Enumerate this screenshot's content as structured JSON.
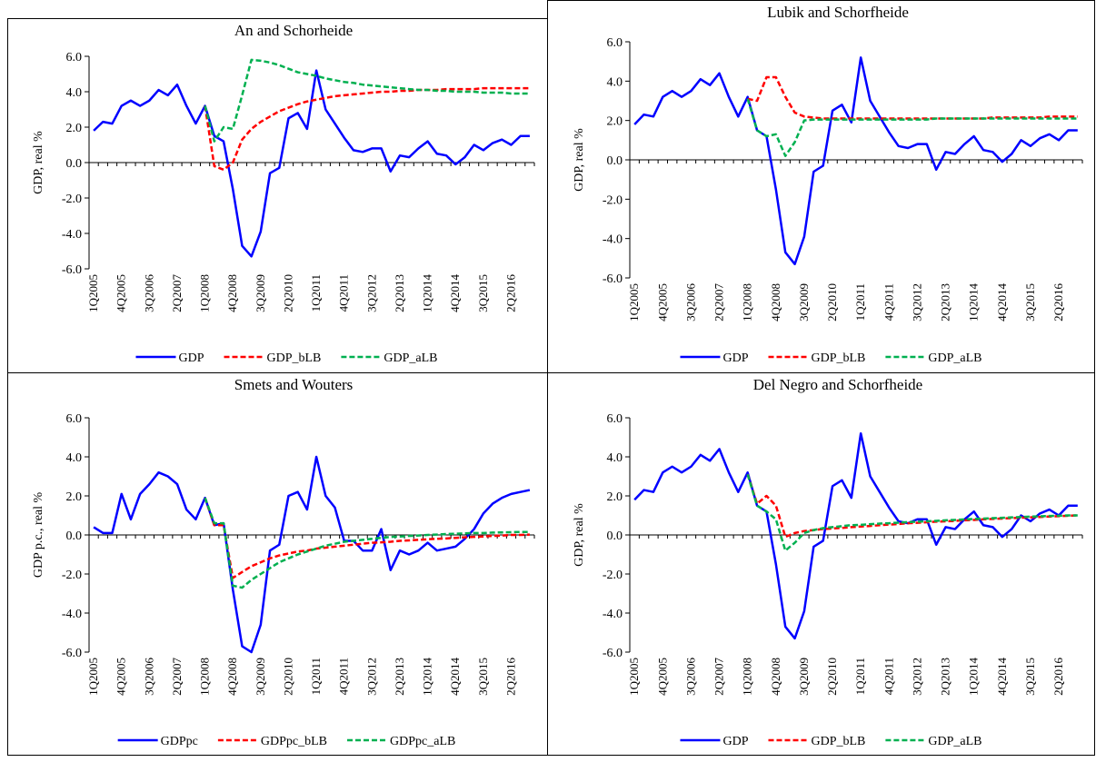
{
  "chart_data": [
    {
      "type": "line",
      "title": "An and Schorheide",
      "y_label": "GDP, real %",
      "categories": [
        "1Q2005",
        null,
        null,
        "4Q2005",
        null,
        null,
        "3Q2006",
        null,
        null,
        "2Q2007",
        null,
        null,
        "1Q2008",
        null,
        null,
        "4Q2008",
        null,
        null,
        "3Q2009",
        null,
        null,
        "2Q2010",
        null,
        null,
        "1Q2011",
        null,
        null,
        "4Q2011",
        null,
        null,
        "3Q2012",
        null,
        null,
        "2Q2013",
        null,
        null,
        "1Q2014",
        null,
        null,
        "4Q2014",
        null,
        null,
        "3Q2015",
        null,
        null,
        "2Q2016",
        null,
        null
      ],
      "series": [
        {
          "name": "GDP",
          "color": "#0000ff",
          "dashed": false,
          "values": [
            1.8,
            2.3,
            2.2,
            3.2,
            3.5,
            3.2,
            3.5,
            4.1,
            3.8,
            4.4,
            3.2,
            2.2,
            3.2,
            1.5,
            1.2,
            -1.5,
            -4.7,
            -5.3,
            -3.9,
            -0.6,
            -0.3,
            2.5,
            2.8,
            1.9,
            5.2,
            3.0,
            2.2,
            1.4,
            0.7,
            0.6,
            0.8,
            0.8,
            -0.5,
            0.4,
            0.3,
            0.8,
            1.2,
            0.5,
            0.4,
            -0.1,
            0.3,
            1.0,
            0.7,
            1.1,
            1.3,
            1.0,
            1.5,
            1.5
          ]
        },
        {
          "name": "GDP_bLB",
          "color": "#ff0000",
          "dashed": true,
          "values": [
            null,
            null,
            null,
            null,
            null,
            null,
            null,
            null,
            null,
            null,
            null,
            null,
            3.2,
            -0.2,
            -0.4,
            0.0,
            1.3,
            1.9,
            2.3,
            2.6,
            2.9,
            3.1,
            3.3,
            3.45,
            3.55,
            3.65,
            3.75,
            3.8,
            3.85,
            3.9,
            3.95,
            4.0,
            4.0,
            4.05,
            4.05,
            4.1,
            4.1,
            4.1,
            4.15,
            4.15,
            4.15,
            4.15,
            4.2,
            4.2,
            4.2,
            4.2,
            4.2,
            4.2
          ]
        },
        {
          "name": "GDP_aLB",
          "color": "#00b050",
          "dashed": true,
          "values": [
            null,
            null,
            null,
            null,
            null,
            null,
            null,
            null,
            null,
            null,
            null,
            null,
            3.2,
            1.2,
            2.0,
            1.9,
            3.8,
            5.8,
            5.75,
            5.65,
            5.5,
            5.3,
            5.1,
            5.0,
            4.9,
            4.75,
            4.65,
            4.55,
            4.5,
            4.4,
            4.35,
            4.3,
            4.25,
            4.2,
            4.15,
            4.1,
            4.1,
            4.05,
            4.05,
            4.0,
            4.0,
            4.0,
            3.95,
            3.95,
            3.95,
            3.9,
            3.9,
            3.9
          ]
        }
      ],
      "ylim": [
        -6,
        6
      ],
      "yticks": [
        {
          "value": -6,
          "label": "-6.0"
        },
        {
          "value": -4,
          "label": "-4.0"
        },
        {
          "value": -2,
          "label": "-2.0"
        },
        {
          "value": 0,
          "label": "0.0"
        },
        {
          "value": 2,
          "label": "2.0"
        },
        {
          "value": 4,
          "label": "4.0"
        },
        {
          "value": 6,
          "label": "6.0"
        }
      ],
      "legend": "bottom",
      "title_color": "#000000"
    },
    {
      "type": "line",
      "title": "Lubik and Schorfheide",
      "y_label": "GDP, real %",
      "categories": [
        "1Q2005",
        null,
        null,
        "4Q2005",
        null,
        null,
        "3Q2006",
        null,
        null,
        "2Q2007",
        null,
        null,
        "1Q2008",
        null,
        null,
        "4Q2008",
        null,
        null,
        "3Q2009",
        null,
        null,
        "2Q2010",
        null,
        null,
        "1Q2011",
        null,
        null,
        "4Q2011",
        null,
        null,
        "3Q2012",
        null,
        null,
        "2Q2013",
        null,
        null,
        "1Q2014",
        null,
        null,
        "4Q2014",
        null,
        null,
        "3Q2015",
        null,
        null,
        "2Q2016",
        null,
        null
      ],
      "series": [
        {
          "name": "GDP",
          "color": "#0000ff",
          "dashed": false,
          "values": [
            1.8,
            2.3,
            2.2,
            3.2,
            3.5,
            3.2,
            3.5,
            4.1,
            3.8,
            4.4,
            3.2,
            2.2,
            3.2,
            1.5,
            1.2,
            -1.5,
            -4.7,
            -5.3,
            -3.9,
            -0.6,
            -0.3,
            2.5,
            2.8,
            1.9,
            5.2,
            3.0,
            2.2,
            1.4,
            0.7,
            0.6,
            0.8,
            0.8,
            -0.5,
            0.4,
            0.3,
            0.8,
            1.2,
            0.5,
            0.4,
            -0.1,
            0.3,
            1.0,
            0.7,
            1.1,
            1.3,
            1.0,
            1.5,
            1.5
          ]
        },
        {
          "name": "GDP_bLB",
          "color": "#ff0000",
          "dashed": true,
          "values": [
            null,
            null,
            null,
            null,
            null,
            null,
            null,
            null,
            null,
            null,
            null,
            null,
            3.1,
            3.0,
            4.2,
            4.2,
            3.2,
            2.4,
            2.2,
            2.15,
            2.1,
            2.1,
            2.1,
            2.1,
            2.1,
            2.1,
            2.1,
            2.1,
            2.1,
            2.1,
            2.1,
            2.1,
            2.1,
            2.1,
            2.1,
            2.1,
            2.1,
            2.1,
            2.15,
            2.15,
            2.15,
            2.15,
            2.15,
            2.15,
            2.2,
            2.2,
            2.2,
            2.2
          ]
        },
        {
          "name": "GDP_aLB",
          "color": "#00b050",
          "dashed": true,
          "values": [
            null,
            null,
            null,
            null,
            null,
            null,
            null,
            null,
            null,
            null,
            null,
            null,
            3.1,
            1.5,
            1.2,
            1.3,
            0.2,
            0.9,
            2.0,
            2.05,
            2.05,
            2.05,
            2.05,
            2.05,
            2.05,
            2.05,
            2.05,
            2.05,
            2.05,
            2.05,
            2.05,
            2.05,
            2.1,
            2.1,
            2.1,
            2.1,
            2.1,
            2.1,
            2.1,
            2.1,
            2.1,
            2.1,
            2.1,
            2.1,
            2.1,
            2.1,
            2.1,
            2.1
          ]
        }
      ],
      "ylim": [
        -6,
        6
      ],
      "yticks": [
        {
          "value": -6,
          "label": "-6.0"
        },
        {
          "value": -4,
          "label": "-4.0"
        },
        {
          "value": -2,
          "label": "-2.0"
        },
        {
          "value": 0,
          "label": "0.0"
        },
        {
          "value": 2,
          "label": "2.0"
        },
        {
          "value": 4,
          "label": "4.0"
        },
        {
          "value": 6,
          "label": "6.0"
        }
      ],
      "legend": "bottom",
      "title_color": "#000000"
    },
    {
      "type": "line",
      "title": "Smets and Wouters",
      "y_label": "GDP p.c., real %",
      "categories": [
        "1Q2005",
        null,
        null,
        "4Q2005",
        null,
        null,
        "3Q2006",
        null,
        null,
        "2Q2007",
        null,
        null,
        "1Q2008",
        null,
        null,
        "4Q2008",
        null,
        null,
        "3Q2009",
        null,
        null,
        "2Q2010",
        null,
        null,
        "1Q2011",
        null,
        null,
        "4Q2011",
        null,
        null,
        "3Q2012",
        null,
        null,
        "2Q2013",
        null,
        null,
        "1Q2014",
        null,
        null,
        "4Q2014",
        null,
        null,
        "3Q2015",
        null,
        null,
        "2Q2016",
        null,
        null
      ],
      "series": [
        {
          "name": "GDPpc",
          "color": "#0000ff",
          "dashed": false,
          "values": [
            0.4,
            0.1,
            0.1,
            2.1,
            0.8,
            2.1,
            2.6,
            3.2,
            3.0,
            2.6,
            1.3,
            0.8,
            1.9,
            0.5,
            0.6,
            -2.8,
            -5.7,
            -6.0,
            -4.6,
            -0.8,
            -0.5,
            2.0,
            2.2,
            1.3,
            4.0,
            2.0,
            1.4,
            -0.3,
            -0.3,
            -0.8,
            -0.8,
            0.3,
            -1.8,
            -0.8,
            -1.0,
            -0.8,
            -0.4,
            -0.8,
            -0.7,
            -0.6,
            -0.2,
            0.3,
            1.1,
            1.6,
            1.9,
            2.1,
            2.2,
            2.3
          ]
        },
        {
          "name": "GDPpc_bLB",
          "color": "#ff0000",
          "dashed": true,
          "values": [
            null,
            null,
            null,
            null,
            null,
            null,
            null,
            null,
            null,
            null,
            null,
            null,
            1.9,
            0.5,
            0.5,
            -2.2,
            -1.9,
            -1.6,
            -1.4,
            -1.2,
            -1.05,
            -0.95,
            -0.85,
            -0.8,
            -0.7,
            -0.65,
            -0.6,
            -0.55,
            -0.5,
            -0.45,
            -0.4,
            -0.38,
            -0.35,
            -0.3,
            -0.28,
            -0.25,
            -0.22,
            -0.2,
            -0.18,
            -0.15,
            -0.12,
            -0.1,
            -0.08,
            -0.05,
            -0.03,
            0.0,
            0.0,
            0.02
          ]
        },
        {
          "name": "GDPpc_aLB",
          "color": "#00b050",
          "dashed": true,
          "values": [
            null,
            null,
            null,
            null,
            null,
            null,
            null,
            null,
            null,
            null,
            null,
            null,
            1.9,
            0.6,
            0.6,
            -2.6,
            -2.7,
            -2.3,
            -2.0,
            -1.7,
            -1.4,
            -1.2,
            -1.0,
            -0.85,
            -0.7,
            -0.55,
            -0.45,
            -0.35,
            -0.3,
            -0.25,
            -0.2,
            -0.15,
            -0.1,
            -0.08,
            -0.05,
            -0.03,
            0.0,
            0.02,
            0.05,
            0.06,
            0.08,
            0.1,
            0.1,
            0.12,
            0.13,
            0.14,
            0.15,
            0.15
          ]
        }
      ],
      "ylim": [
        -6,
        6
      ],
      "yticks": [
        {
          "value": -6,
          "label": "-6.0"
        },
        {
          "value": -4,
          "label": "-4.0"
        },
        {
          "value": -2,
          "label": "-2.0"
        },
        {
          "value": 0,
          "label": "0.0"
        },
        {
          "value": 2,
          "label": "2.0"
        },
        {
          "value": 4,
          "label": "4.0"
        },
        {
          "value": 6,
          "label": "6.0"
        }
      ],
      "legend": "bottom",
      "title_color": "#7f7f7f"
    },
    {
      "type": "line",
      "title": "Del Negro and Schorfheide",
      "y_label": "GDP, real %",
      "categories": [
        "1Q2005",
        null,
        null,
        "4Q2005",
        null,
        null,
        "3Q2006",
        null,
        null,
        "2Q2007",
        null,
        null,
        "1Q2008",
        null,
        null,
        "4Q2008",
        null,
        null,
        "3Q2009",
        null,
        null,
        "2Q2010",
        null,
        null,
        "1Q2011",
        null,
        null,
        "4Q2011",
        null,
        null,
        "3Q2012",
        null,
        null,
        "2Q2013",
        null,
        null,
        "1Q2014",
        null,
        null,
        "4Q2014",
        null,
        null,
        "3Q2015",
        null,
        null,
        "2Q2016",
        null,
        null
      ],
      "series": [
        {
          "name": "GDP",
          "color": "#0000ff",
          "dashed": false,
          "values": [
            1.8,
            2.3,
            2.2,
            3.2,
            3.5,
            3.2,
            3.5,
            4.1,
            3.8,
            4.4,
            3.2,
            2.2,
            3.2,
            1.5,
            1.2,
            -1.5,
            -4.7,
            -5.3,
            -3.9,
            -0.6,
            -0.3,
            2.5,
            2.8,
            1.9,
            5.2,
            3.0,
            2.2,
            1.4,
            0.7,
            0.6,
            0.8,
            0.8,
            -0.5,
            0.4,
            0.3,
            0.8,
            1.2,
            0.5,
            0.4,
            -0.1,
            0.3,
            1.0,
            0.7,
            1.1,
            1.3,
            1.0,
            1.5,
            1.5
          ]
        },
        {
          "name": "GDP_bLB",
          "color": "#ff0000",
          "dashed": true,
          "values": [
            null,
            null,
            null,
            null,
            null,
            null,
            null,
            null,
            null,
            null,
            null,
            null,
            3.1,
            1.6,
            2.0,
            1.5,
            -0.1,
            0.1,
            0.2,
            0.25,
            0.3,
            0.33,
            0.36,
            0.4,
            0.43,
            0.46,
            0.5,
            0.53,
            0.56,
            0.6,
            0.62,
            0.65,
            0.68,
            0.7,
            0.72,
            0.75,
            0.77,
            0.8,
            0.82,
            0.84,
            0.86,
            0.88,
            0.9,
            0.92,
            0.94,
            0.96,
            0.98,
            1.0
          ]
        },
        {
          "name": "GDP_aLB",
          "color": "#00b050",
          "dashed": true,
          "values": [
            null,
            null,
            null,
            null,
            null,
            null,
            null,
            null,
            null,
            null,
            null,
            null,
            3.1,
            1.5,
            1.2,
            0.8,
            -0.8,
            -0.4,
            0.1,
            0.25,
            0.35,
            0.4,
            0.45,
            0.5,
            0.52,
            0.55,
            0.58,
            0.6,
            0.63,
            0.66,
            0.68,
            0.7,
            0.72,
            0.75,
            0.77,
            0.8,
            0.82,
            0.84,
            0.86,
            0.88,
            0.9,
            0.92,
            0.94,
            0.95,
            0.97,
            0.98,
            1.0,
            1.0
          ]
        }
      ],
      "ylim": [
        -6,
        6
      ],
      "yticks": [
        {
          "value": -6,
          "label": "-6.0"
        },
        {
          "value": -4,
          "label": "-4.0"
        },
        {
          "value": -2,
          "label": "-2.0"
        },
        {
          "value": 0,
          "label": "0.0"
        },
        {
          "value": 2,
          "label": "2.0"
        },
        {
          "value": 4,
          "label": "4.0"
        },
        {
          "value": 6,
          "label": "6.0"
        }
      ],
      "legend": "bottom",
      "title_color": "#000000"
    }
  ]
}
